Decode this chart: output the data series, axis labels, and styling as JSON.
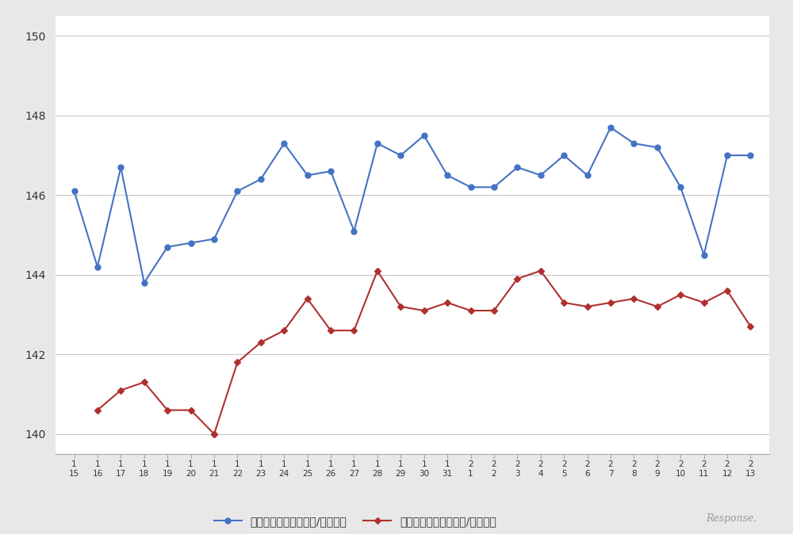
{
  "x_labels_row1": [
    "1",
    "1",
    "1",
    "1",
    "1",
    "1",
    "1",
    "1",
    "1",
    "1",
    "1",
    "1",
    "1",
    "1",
    "1",
    "1",
    "1",
    "2",
    "2",
    "2",
    "2",
    "2",
    "2",
    "2",
    "2",
    "2",
    "2",
    "2",
    "2",
    "2"
  ],
  "x_labels_row2": [
    "15",
    "16",
    "17",
    "18",
    "19",
    "20",
    "21",
    "22",
    "23",
    "24",
    "25",
    "26",
    "27",
    "28",
    "29",
    "30",
    "31",
    "1",
    "2",
    "3",
    "4",
    "5",
    "6",
    "7",
    "8",
    "9",
    "10",
    "11",
    "12",
    "13"
  ],
  "blue_x": [
    0,
    1,
    2,
    3,
    4,
    5,
    6,
    7,
    8,
    9,
    10,
    11,
    12,
    13,
    14,
    15,
    16,
    17,
    18,
    19,
    20,
    21,
    22,
    23,
    24,
    25,
    26,
    27,
    28,
    29
  ],
  "blue_values": [
    146.1,
    144.2,
    146.7,
    143.8,
    144.7,
    144.8,
    144.9,
    146.1,
    146.4,
    147.3,
    146.5,
    146.6,
    145.1,
    147.3,
    147.0,
    147.5,
    146.5,
    146.2,
    146.2,
    146.7,
    146.5,
    147.0,
    146.5,
    147.7,
    147.3,
    147.2,
    146.2,
    144.5,
    147.0,
    147.0
  ],
  "red_x": [
    6,
    7,
    8,
    9,
    10,
    11,
    12,
    13,
    14,
    15,
    16,
    17,
    18,
    19,
    20,
    21,
    22,
    23,
    24,
    25,
    26,
    27,
    28,
    29
  ],
  "red_values": [
    140.0,
    141.8,
    142.3,
    142.6,
    143.4,
    142.6,
    142.6,
    144.1,
    143.2,
    143.1,
    143.3,
    143.1,
    143.1,
    143.9,
    144.1,
    143.3,
    143.2,
    143.3,
    143.4,
    143.2,
    143.5,
    143.3,
    143.6,
    142.7
  ],
  "red_x_early": [
    1,
    2,
    3,
    4,
    5,
    6
  ],
  "red_values_early": [
    140.6,
    141.1,
    141.3,
    140.6,
    140.6,
    140.0
  ],
  "blue_color": "#4472c4",
  "red_color": "#b03030",
  "ylim_min": 139.5,
  "ylim_max": 150.5,
  "yticks": [
    140,
    142,
    144,
    146,
    148,
    150
  ],
  "legend_blue": "ハイオク看板価格（円/リット）",
  "legend_red": "ハイオク実売価格（円/リット）",
  "bg_color": "#e8e8e8",
  "plot_bg_color": "#ffffff",
  "grid_color": "#c8c8c8",
  "watermark": "Response."
}
